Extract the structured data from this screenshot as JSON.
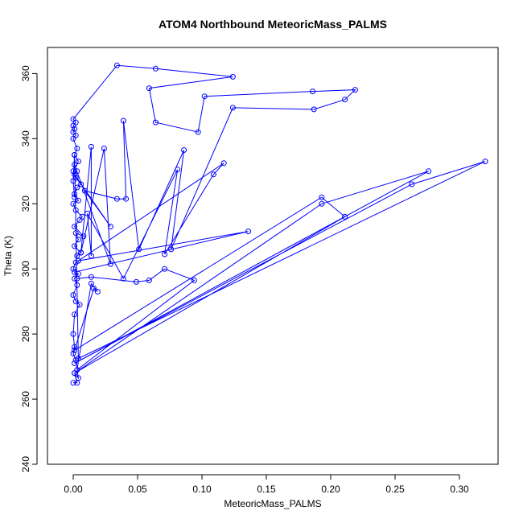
{
  "chart_data": {
    "type": "line",
    "title": "ATOM4 Northbound MeteoricMass_PALMS",
    "xlabel": "MeteoricMass_PALMS",
    "ylabel": "Theta (K)",
    "xlim": [
      -0.02,
      0.33
    ],
    "ylim": [
      240,
      368
    ],
    "x_ticks": [
      0.0,
      0.05,
      0.1,
      0.15,
      0.2,
      0.25,
      0.3
    ],
    "x_tick_labels": [
      "0.00",
      "0.05",
      "0.10",
      "0.15",
      "0.20",
      "0.25",
      "0.30"
    ],
    "y_ticks": [
      240,
      260,
      280,
      300,
      320,
      340,
      360
    ],
    "y_tick_labels": [
      "240",
      "260",
      "280",
      "300",
      "320",
      "340",
      "360"
    ],
    "grid": false,
    "series": [
      {
        "color": "#0000ff",
        "points": [
          [
            0.0,
            265.0
          ],
          [
            0.003,
            265.0
          ],
          [
            0.001,
            268.0
          ],
          [
            0.004,
            266.5
          ],
          [
            0.002,
            272.0
          ],
          [
            0.0,
            274.0
          ],
          [
            0.001,
            276.0
          ],
          [
            0.0,
            280.0
          ],
          [
            0.001,
            286.0
          ],
          [
            0.005,
            289.0
          ],
          [
            0.002,
            290.0
          ],
          [
            0.0,
            292.0
          ],
          [
            0.003,
            295.0
          ],
          [
            0.001,
            297.0
          ],
          [
            0.004,
            298.5
          ],
          [
            0.0,
            300.0
          ],
          [
            0.002,
            302.0
          ],
          [
            0.003,
            304.0
          ],
          [
            0.006,
            305.0
          ],
          [
            0.001,
            307.0
          ],
          [
            0.004,
            309.0
          ],
          [
            0.002,
            311.0
          ],
          [
            0.008,
            310.0
          ],
          [
            0.001,
            313.0
          ],
          [
            0.005,
            315.0
          ],
          [
            0.007,
            316.0
          ],
          [
            0.002,
            318.0
          ],
          [
            0.0,
            320.0
          ],
          [
            0.004,
            321.0
          ],
          [
            0.001,
            323.0
          ],
          [
            0.003,
            325.0
          ],
          [
            0.006,
            326.0
          ],
          [
            0.002,
            328.0
          ],
          [
            0.0,
            330.0
          ],
          [
            0.004,
            333.0
          ],
          [
            0.001,
            335.0
          ],
          [
            0.003,
            337.0
          ],
          [
            0.0,
            340.0
          ],
          [
            0.002,
            341.0
          ],
          [
            0.0,
            342.0
          ],
          [
            0.001,
            343.0
          ],
          [
            0.0,
            344.0
          ],
          [
            0.002,
            345.0
          ],
          [
            0.0,
            346.0
          ],
          [
            0.034,
            362.5
          ],
          [
            0.064,
            361.5
          ],
          [
            0.124,
            359.0
          ],
          [
            0.059,
            355.5
          ],
          [
            0.064,
            345.0
          ],
          [
            0.097,
            342.0
          ],
          [
            0.102,
            353.0
          ],
          [
            0.186,
            354.5
          ],
          [
            0.219,
            355.0
          ],
          [
            0.211,
            352.0
          ],
          [
            0.187,
            349.0
          ],
          [
            0.124,
            349.5
          ],
          [
            0.076,
            306.0
          ],
          [
            0.086,
            336.5
          ],
          [
            0.051,
            306.0
          ],
          [
            0.039,
            345.5
          ],
          [
            0.041,
            321.5
          ],
          [
            0.034,
            321.5
          ],
          [
            0.009,
            324.0
          ],
          [
            0.029,
            313.0
          ],
          [
            0.001,
            329.0
          ],
          [
            0.003,
            330.0
          ],
          [
            0.001,
            332.0
          ],
          [
            0.029,
            301.5
          ],
          [
            0.024,
            337.0
          ],
          [
            0.006,
            305.0
          ],
          [
            0.014,
            337.5
          ],
          [
            0.014,
            304.0
          ],
          [
            0.011,
            317.0
          ],
          [
            0.039,
            297.0
          ],
          [
            0.081,
            330.5
          ],
          [
            0.071,
            304.5
          ],
          [
            0.109,
            329.0
          ],
          [
            0.117,
            332.5
          ],
          [
            0.004,
            302.5
          ],
          [
            0.136,
            311.5
          ],
          [
            0.001,
            299.0
          ],
          [
            0.003,
            297.0
          ],
          [
            0.014,
            297.5
          ],
          [
            0.049,
            296.0
          ],
          [
            0.059,
            296.5
          ],
          [
            0.071,
            300.0
          ],
          [
            0.094,
            296.5
          ],
          [
            0.003,
            269.0
          ],
          [
            0.014,
            295.5
          ],
          [
            0.019,
            293.0
          ],
          [
            0.016,
            294.0
          ],
          [
            0.001,
            275.0
          ],
          [
            0.193,
            322.0
          ],
          [
            0.211,
            316.0
          ],
          [
            0.001,
            268.0
          ],
          [
            0.193,
            320.0
          ],
          [
            0.276,
            330.0
          ],
          [
            0.001,
            271.0
          ],
          [
            0.263,
            326.0
          ],
          [
            0.32,
            333.0
          ],
          [
            0.004,
            272.5
          ],
          [
            0.001,
            335.0
          ],
          [
            0.0,
            327.0
          ],
          [
            0.001,
            322.0
          ]
        ]
      }
    ]
  }
}
